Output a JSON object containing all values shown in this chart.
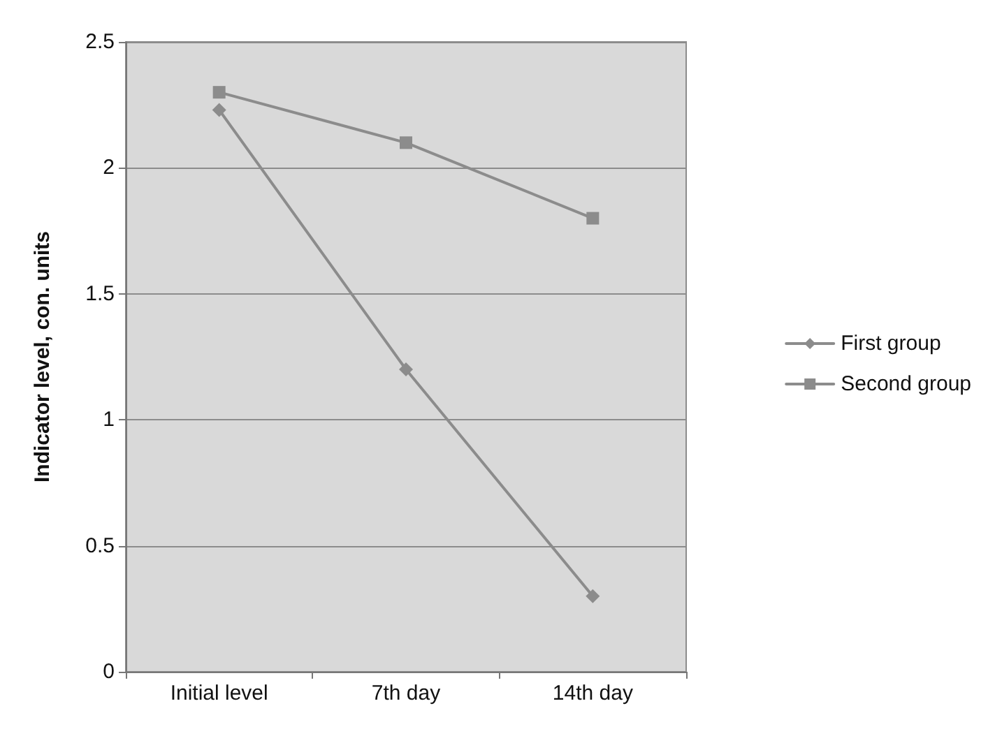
{
  "chart_data": {
    "type": "line",
    "ylabel": "Indicator level, con. units",
    "categories": [
      "Initial level",
      "7th day",
      "14th day"
    ],
    "series": [
      {
        "name": "First group",
        "color": "#8c8c8c",
        "marker": "diamond",
        "values": [
          2.23,
          1.2,
          0.3
        ]
      },
      {
        "name": "Second group",
        "color": "#8c8c8c",
        "marker": "square",
        "values": [
          2.3,
          2.1,
          1.8
        ]
      }
    ],
    "ylim": [
      0,
      2.5
    ],
    "yticks": [
      0,
      0.5,
      1,
      1.5,
      2,
      2.5
    ],
    "grid": "y",
    "legend": "right"
  }
}
